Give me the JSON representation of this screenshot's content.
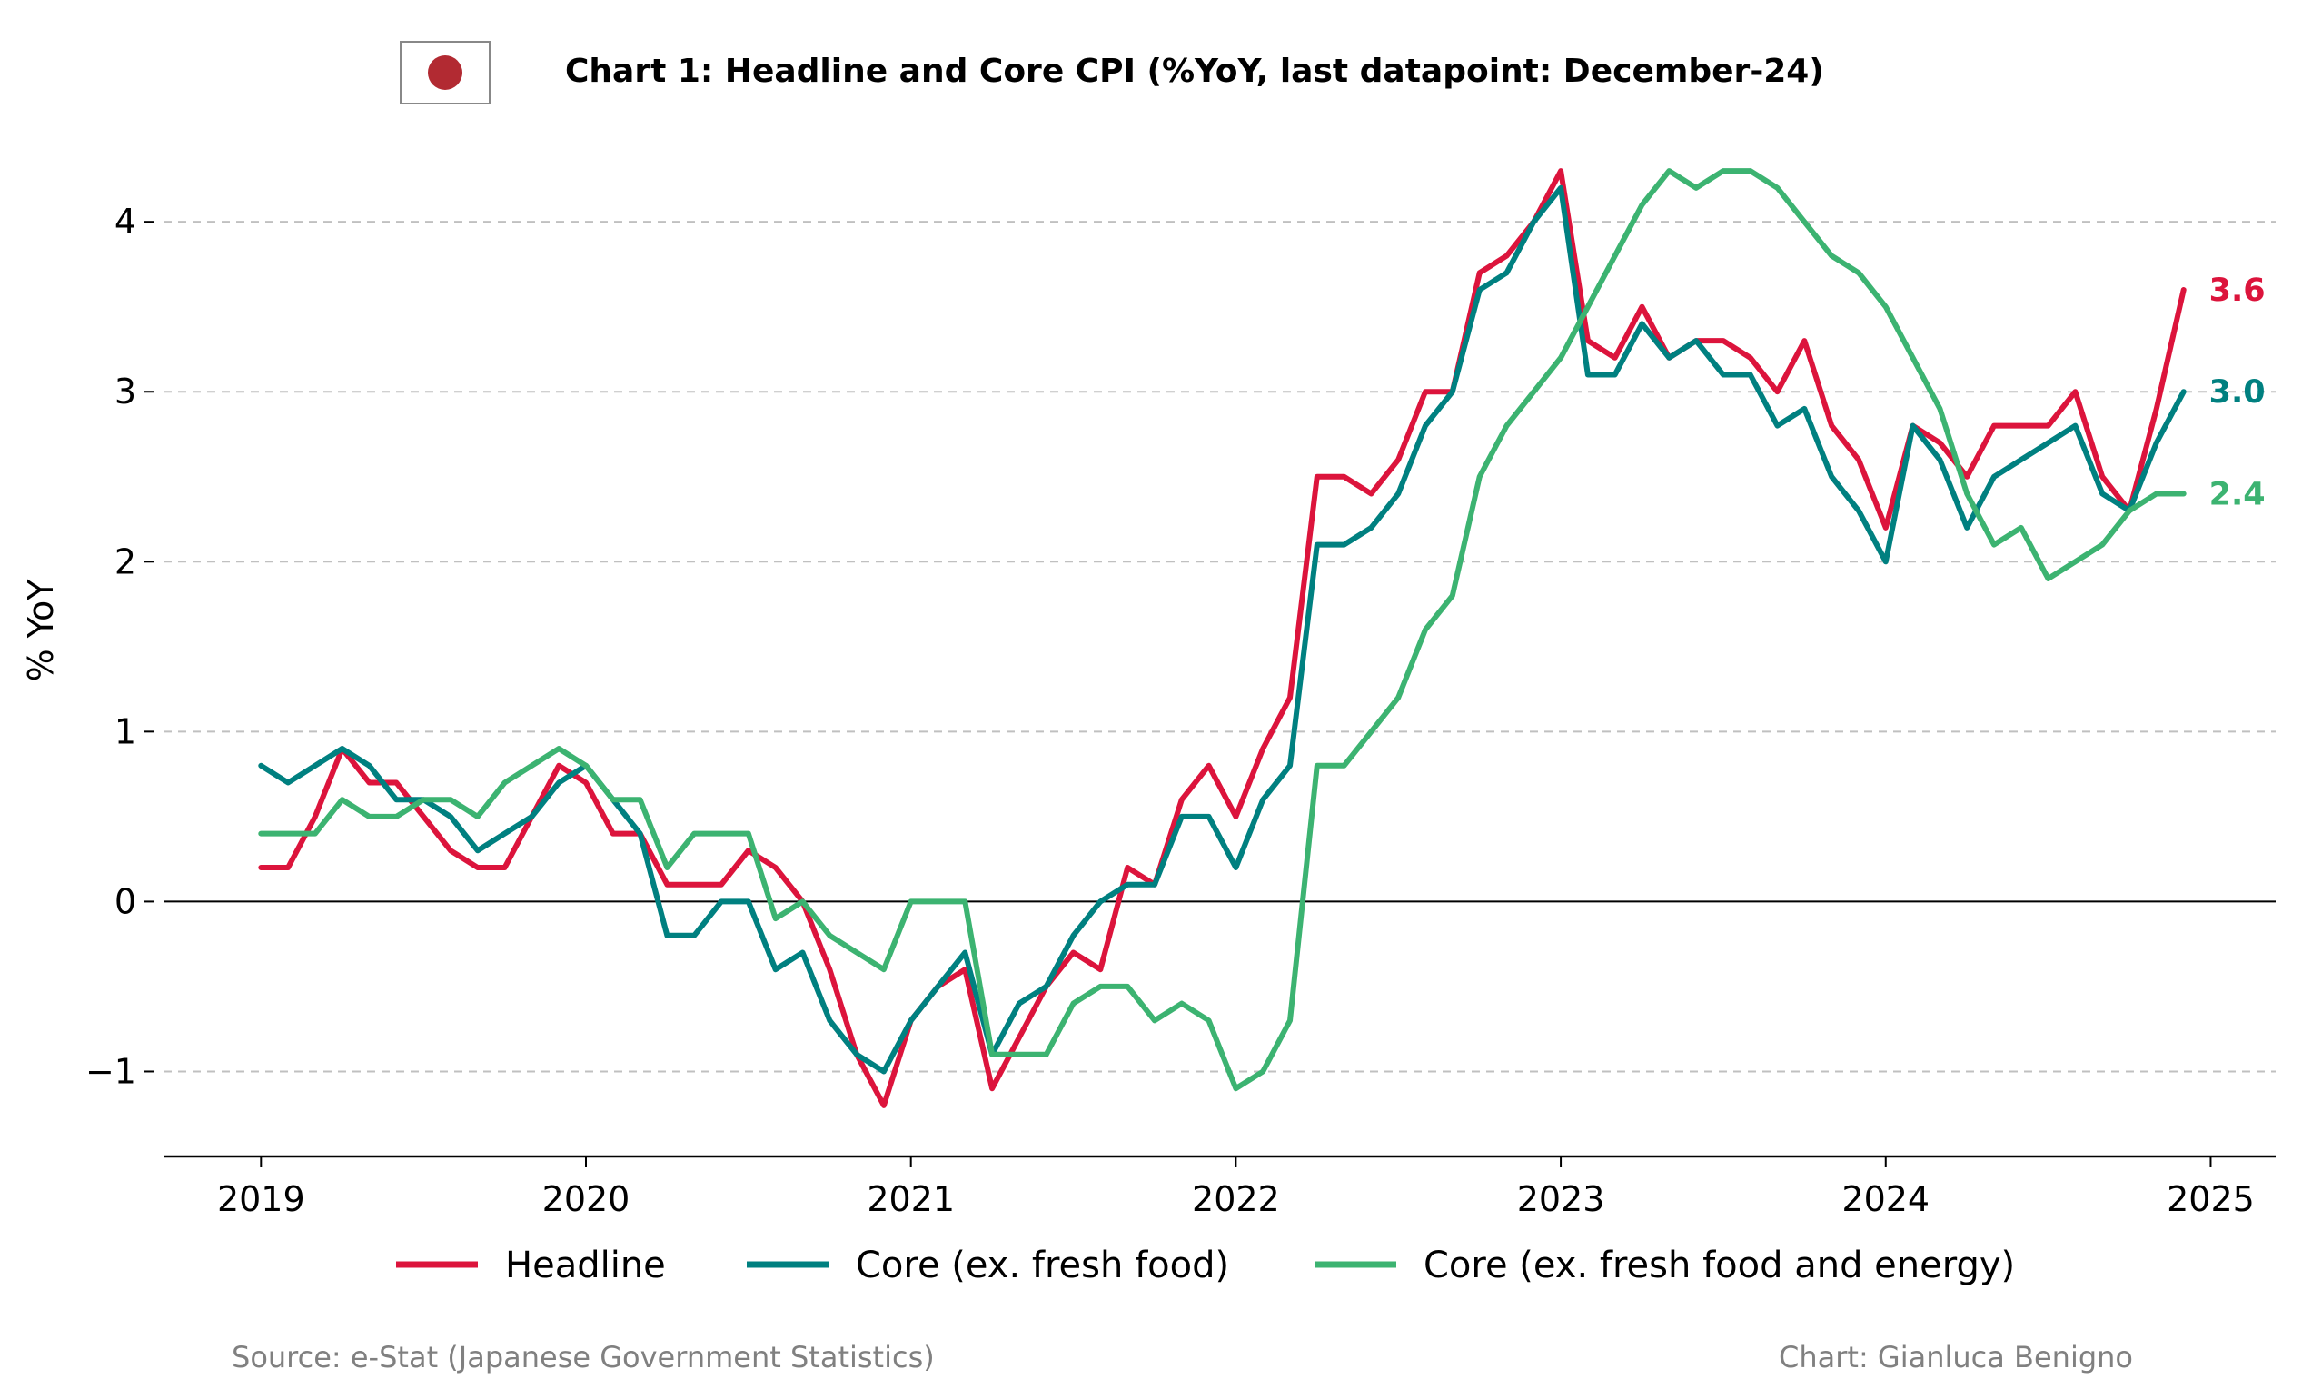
{
  "title": "Chart 1: Headline and Core CPI (%YoY, last datapoint: December-24)",
  "ylabel": "% YoY",
  "source": "Source: e-Stat (Japanese Government Statistics)",
  "credit": "Chart: Gianluca Benigno",
  "flag_icon": "japan-flag-icon",
  "colors": {
    "headline": "#dc143c",
    "core": "#008080",
    "core_ex_energy": "#3cb371",
    "zero_line": "#000000",
    "grid": "#c0c0c0",
    "flag_circle": "#b22a32"
  },
  "chart_data": {
    "type": "line",
    "title": "Chart 1: Headline and Core CPI (%YoY, last datapoint: December-24)",
    "xlabel": "",
    "ylabel": "% YoY",
    "xlim": [
      2018.7,
      2025.2
    ],
    "ylim": [
      -1.5,
      4.45
    ],
    "xticks": [
      "2019",
      "2020",
      "2021",
      "2022",
      "2023",
      "2024",
      "2025"
    ],
    "yticks": [
      "−1",
      "0",
      "1",
      "2",
      "3",
      "4"
    ],
    "grid": "horizontal dashed",
    "legend_position": "bottom",
    "x_start": "2019-01",
    "x_end": "2024-12",
    "series": [
      {
        "name": "Headline",
        "color": "#dc143c",
        "end_label": "3.6",
        "values": [
          0.2,
          0.2,
          0.5,
          0.9,
          0.7,
          0.7,
          0.5,
          0.3,
          0.2,
          0.2,
          0.5,
          0.8,
          0.7,
          0.4,
          0.4,
          0.1,
          0.1,
          0.1,
          0.3,
          0.2,
          0.0,
          -0.4,
          -0.9,
          -1.2,
          -0.7,
          -0.5,
          -0.4,
          -1.1,
          -0.8,
          -0.5,
          -0.3,
          -0.4,
          0.2,
          0.1,
          0.6,
          0.8,
          0.5,
          0.9,
          1.2,
          2.5,
          2.5,
          2.4,
          2.6,
          3.0,
          3.0,
          3.7,
          3.8,
          4.0,
          4.3,
          3.3,
          3.2,
          3.5,
          3.2,
          3.3,
          3.3,
          3.2,
          3.0,
          3.3,
          2.8,
          2.6,
          2.2,
          2.8,
          2.7,
          2.5,
          2.8,
          2.8,
          2.8,
          3.0,
          2.5,
          2.3,
          2.9,
          3.6
        ]
      },
      {
        "name": "Core (ex. fresh food)",
        "color": "#008080",
        "end_label": "3.0",
        "values": [
          0.8,
          0.7,
          0.8,
          0.9,
          0.8,
          0.6,
          0.6,
          0.5,
          0.3,
          0.4,
          0.5,
          0.7,
          0.8,
          0.6,
          0.4,
          -0.2,
          -0.2,
          0.0,
          0.0,
          -0.4,
          -0.3,
          -0.7,
          -0.9,
          -1.0,
          -0.7,
          -0.5,
          -0.3,
          -0.9,
          -0.6,
          -0.5,
          -0.2,
          0.0,
          0.1,
          0.1,
          0.5,
          0.5,
          0.2,
          0.6,
          0.8,
          2.1,
          2.1,
          2.2,
          2.4,
          2.8,
          3.0,
          3.6,
          3.7,
          4.0,
          4.2,
          3.1,
          3.1,
          3.4,
          3.2,
          3.3,
          3.1,
          3.1,
          2.8,
          2.9,
          2.5,
          2.3,
          2.0,
          2.8,
          2.6,
          2.2,
          2.5,
          2.6,
          2.7,
          2.8,
          2.4,
          2.3,
          2.7,
          3.0
        ]
      },
      {
        "name": "Core (ex. fresh food and energy)",
        "color": "#3cb371",
        "end_label": "2.4",
        "values": [
          0.4,
          0.4,
          0.4,
          0.6,
          0.5,
          0.5,
          0.6,
          0.6,
          0.5,
          0.7,
          0.8,
          0.9,
          0.8,
          0.6,
          0.6,
          0.2,
          0.4,
          0.4,
          0.4,
          -0.1,
          0.0,
          -0.2,
          -0.3,
          -0.4,
          0.0,
          0.0,
          0.0,
          -0.9,
          -0.9,
          -0.9,
          -0.6,
          -0.5,
          -0.5,
          -0.7,
          -0.6,
          -0.7,
          -1.1,
          -1.0,
          -0.7,
          0.8,
          0.8,
          1.0,
          1.2,
          1.6,
          1.8,
          2.5,
          2.8,
          3.0,
          3.2,
          3.5,
          3.8,
          4.1,
          4.3,
          4.2,
          4.3,
          4.3,
          4.2,
          4.0,
          3.8,
          3.7,
          3.5,
          3.2,
          2.9,
          2.4,
          2.1,
          2.2,
          1.9,
          2.0,
          2.1,
          2.3,
          2.4,
          2.4
        ]
      }
    ]
  }
}
